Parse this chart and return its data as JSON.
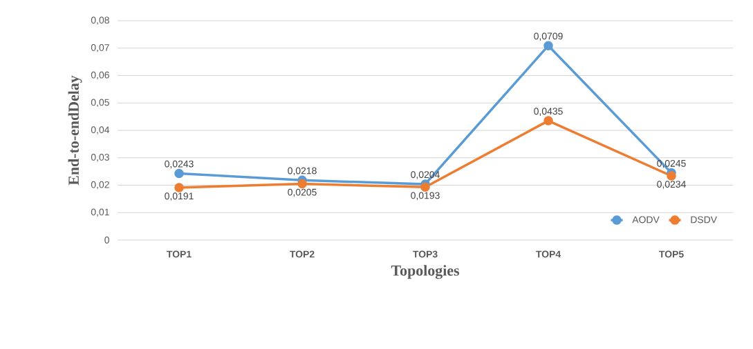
{
  "chart_data": {
    "type": "line",
    "xlabel": "Topologies",
    "ylabel": "End-to-endDelay",
    "categories": [
      "TOP1",
      "TOP2",
      "TOP3",
      "TOP4",
      "TOP5"
    ],
    "series": [
      {
        "name": "AODV",
        "color": "#5b9bd5",
        "values": [
          0.0243,
          0.0218,
          0.0204,
          0.0709,
          0.0245
        ],
        "value_labels": [
          "0,0243",
          "0,0218",
          "0,0204",
          "0,0709",
          "0,0245"
        ]
      },
      {
        "name": "DSDV",
        "color": "#ed7d31",
        "values": [
          0.0191,
          0.0205,
          0.0193,
          0.0435,
          0.0234
        ],
        "value_labels": [
          "0,0191",
          "0,0205",
          "0,0193",
          "0,0435",
          "0,0234"
        ]
      }
    ],
    "ylim": [
      0,
      0.08
    ],
    "yticks": [
      {
        "value": 0,
        "label": "0"
      },
      {
        "value": 0.01,
        "label": "0,01"
      },
      {
        "value": 0.02,
        "label": "0,02"
      },
      {
        "value": 0.03,
        "label": "0,03"
      },
      {
        "value": 0.04,
        "label": "0,04"
      },
      {
        "value": 0.05,
        "label": "0,05"
      },
      {
        "value": 0.06,
        "label": "0,06"
      },
      {
        "value": 0.07,
        "label": "0,07"
      },
      {
        "value": 0.08,
        "label": "0,08"
      }
    ],
    "grid": "y",
    "legend": "bottom right",
    "marker": "circle",
    "line_style": "solid"
  }
}
